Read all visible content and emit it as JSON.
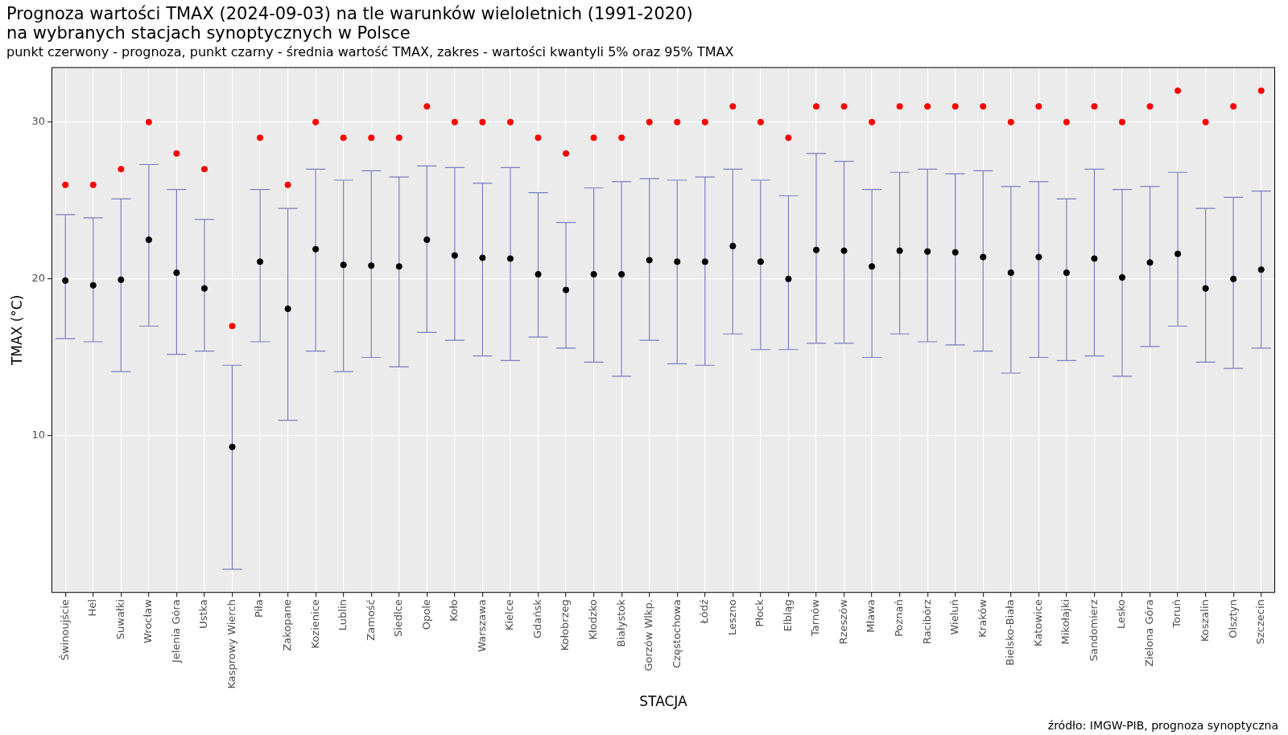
{
  "chart_data": {
    "type": "errorbar_points",
    "title": [
      "Prognoza wartości TMAX (2024-09-03) na tle warunków wieloletnich (1991-2020)",
      "na wybranych stacjach synoptycznych w Polsce"
    ],
    "subtitle": "punkt czerwony - prognoza, punkt czarny - średnia wartość TMAX, zakres - wartości kwantyli 5% oraz 95% TMAX",
    "x_label": "STACJA",
    "y_label": "TMAX (°C)",
    "source": "źródło: IMGW-PIB, prognoza synoptyczna",
    "categories": [
      "Świnoujście",
      "Hel",
      "Suwałki",
      "Wrocław",
      "Jelenia Góra",
      "Ustka",
      "Kasprowy Wierch",
      "Piła",
      "Zakopane",
      "Kozienice",
      "Lublin",
      "Zamość",
      "Siedlce",
      "Opole",
      "Koło",
      "Warszawa",
      "Kielce",
      "Gdańsk",
      "Kołobrzeg",
      "Kłodzko",
      "Białystok",
      "Gorzów Wlkp.",
      "Częstochowa",
      "Łódź",
      "Leszno",
      "Płock",
      "Elbląg",
      "Tarnów",
      "Rzeszów",
      "Mława",
      "Poznań",
      "Racibórz",
      "Wieluń",
      "Kraków",
      "Bielsko-Biała",
      "Katowice",
      "Mikołajki",
      "Sandomierz",
      "Lesko",
      "Zielona Góra",
      "Toruń",
      "Koszalin",
      "Olsztyn",
      "Szczecin"
    ],
    "series": [
      {
        "color": "#ff0000",
        "marker": "circle",
        "values": [
          26,
          26,
          27,
          30,
          28,
          27,
          17,
          29,
          26,
          30,
          29,
          29,
          29,
          31,
          30,
          30,
          30,
          29,
          28,
          29,
          29,
          30,
          30,
          30,
          31,
          30,
          29,
          31,
          31,
          30,
          31,
          31,
          31,
          31,
          30,
          31,
          30,
          31,
          30,
          31,
          32,
          30,
          31,
          32
        ]
      },
      {
        "color": "#000000",
        "marker": "circle",
        "values": [
          19.9,
          19.6,
          19.95,
          22.5,
          20.4,
          19.4,
          9.3,
          21.1,
          18.1,
          21.9,
          20.9,
          20.85,
          20.8,
          22.5,
          21.5,
          21.35,
          21.3,
          20.3,
          19.3,
          20.3,
          20.3,
          21.2,
          21.1,
          21.1,
          22.1,
          21.1,
          20.0,
          21.85,
          21.8,
          20.8,
          21.8,
          21.75,
          21.7,
          21.4,
          20.4,
          21.4,
          20.4,
          21.3,
          20.1,
          21.05,
          21.6,
          19.4,
          20.0,
          20.6
        ]
      }
    ],
    "range": {
      "color": "#7b7bc1",
      "quantile_5": [
        16.2,
        16.0,
        14.1,
        17.0,
        15.2,
        15.4,
        1.5,
        16.0,
        11.0,
        15.4,
        14.1,
        15.0,
        14.4,
        16.6,
        16.1,
        15.1,
        14.8,
        16.3,
        15.6,
        14.7,
        13.8,
        16.1,
        14.6,
        14.5,
        16.5,
        15.5,
        15.5,
        15.9,
        15.9,
        15.0,
        16.5,
        16.0,
        15.8,
        15.4,
        14.0,
        15.0,
        14.8,
        15.1,
        13.8,
        15.7,
        17.0,
        14.7,
        14.3,
        15.6
      ],
      "quantile_95": [
        24.1,
        23.9,
        25.1,
        27.3,
        25.7,
        23.8,
        14.5,
        25.7,
        24.5,
        27.0,
        26.3,
        26.9,
        26.5,
        27.2,
        27.1,
        26.1,
        27.1,
        25.5,
        23.6,
        25.8,
        26.2,
        26.4,
        26.3,
        26.5,
        27.0,
        26.3,
        25.3,
        28.0,
        27.5,
        25.7,
        26.8,
        27.0,
        26.7,
        26.9,
        25.9,
        26.2,
        25.1,
        27.0,
        25.7,
        25.9,
        26.8,
        24.5,
        25.2,
        25.6
      ]
    },
    "ylim": [
      0,
      33.5
    ],
    "yticks": [
      10,
      20,
      30
    ],
    "grid": true
  }
}
